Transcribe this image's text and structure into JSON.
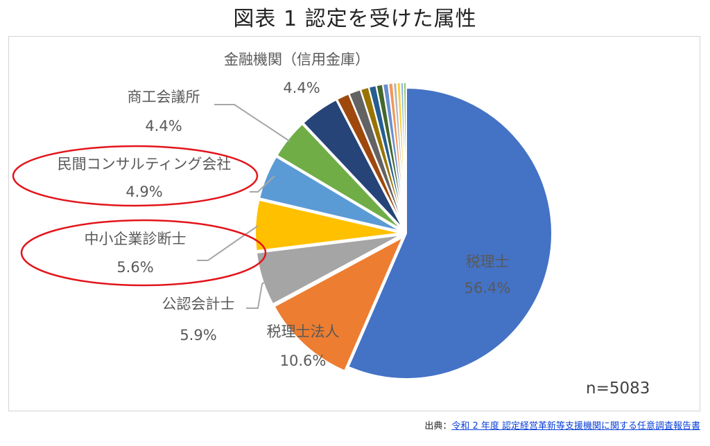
{
  "title": "図表 1 認定を受けた属性",
  "chart_data": {
    "type": "pie",
    "title": "図表 1 認定を受けた属性",
    "total_label": "n=5083",
    "slices": [
      {
        "label": "税理士",
        "value": 56.4,
        "value_label": "56.4%",
        "color": "#4472c4"
      },
      {
        "label": "税理士法人",
        "value": 10.6,
        "value_label": "10.6%",
        "color": "#ed7d31"
      },
      {
        "label": "公認会計士",
        "value": 5.9,
        "value_label": "5.9%",
        "color": "#a5a5a5"
      },
      {
        "label": "中小企業診断士",
        "value": 5.6,
        "value_label": "5.6%",
        "color": "#ffc000",
        "highlighted": true
      },
      {
        "label": "民間コンサルティング会社",
        "value": 4.9,
        "value_label": "4.9%",
        "color": "#5b9bd5",
        "highlighted": true
      },
      {
        "label": "商工会議所",
        "value": 4.4,
        "value_label": "4.4%",
        "color": "#70ad47"
      },
      {
        "label": "金融機関（信用金庫）",
        "value": 4.4,
        "value_label": "4.4%",
        "color": "#264478"
      },
      {
        "label": "",
        "value": 1.4,
        "color": "#9e480e"
      },
      {
        "label": "",
        "value": 1.3,
        "color": "#636363"
      },
      {
        "label": "",
        "value": 0.9,
        "color": "#997300"
      },
      {
        "label": "",
        "value": 0.8,
        "color": "#255e91"
      },
      {
        "label": "",
        "value": 0.7,
        "color": "#43682b"
      },
      {
        "label": "",
        "value": 0.6,
        "color": "#698ed0"
      },
      {
        "label": "",
        "value": 0.5,
        "color": "#f1975a"
      },
      {
        "label": "",
        "value": 0.4,
        "color": "#b7b7b7"
      },
      {
        "label": "",
        "value": 0.4,
        "color": "#ffcd33"
      },
      {
        "label": "",
        "value": 0.3,
        "color": "#7cafdd"
      },
      {
        "label": "",
        "value": 0.3,
        "color": "#8cc168"
      }
    ],
    "highlight_color": "#e3141b"
  },
  "source": {
    "prefix": "出典：",
    "link_text": "令和 2 年度 認定経営革新等支援機関に関する任意調査報告書"
  }
}
